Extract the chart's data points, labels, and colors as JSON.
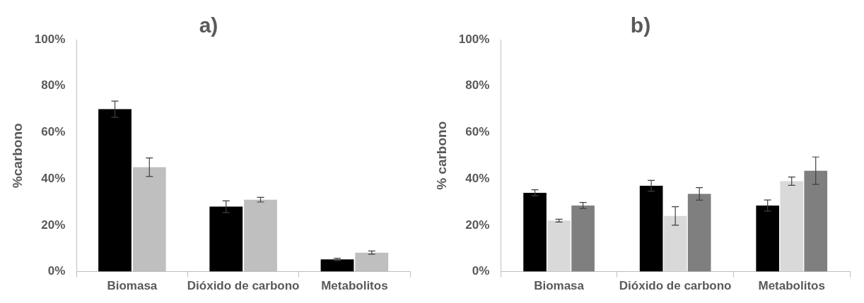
{
  "chart_data": [
    {
      "type": "bar",
      "title": "a)",
      "ylabel": "%carbono",
      "categories": [
        "Biomasa",
        "Dióxido de carbono",
        "Metabolitos"
      ],
      "series": [
        {
          "color": "#000000",
          "values": [
            70,
            28,
            5.3
          ],
          "errors": [
            3.5,
            2.5,
            0.5
          ]
        },
        {
          "color": "#bfbfbf",
          "values": [
            45,
            31,
            8.2
          ],
          "errors": [
            4,
            1,
            0.7
          ]
        }
      ],
      "ylim": [
        0,
        100
      ],
      "yticks": [
        {
          "value": 0,
          "label": "0%"
        },
        {
          "value": 20,
          "label": "20%"
        },
        {
          "value": 40,
          "label": "40%"
        },
        {
          "value": 60,
          "label": "60%"
        },
        {
          "value": 80,
          "label": "80%"
        },
        {
          "value": 100,
          "label": "100%"
        }
      ],
      "grid": false,
      "legend": false
    },
    {
      "type": "bar",
      "title": "b)",
      "ylabel": "% carbono",
      "categories": [
        "Biomasa",
        "Dióxido de carbono",
        "Metabolitos"
      ],
      "series": [
        {
          "color": "#000000",
          "values": [
            34,
            37,
            28.5
          ],
          "errors": [
            1.3,
            2.3,
            2.4
          ]
        },
        {
          "color": "#d9d9d9",
          "values": [
            22,
            24,
            39
          ],
          "errors": [
            0.6,
            4,
            1.8
          ]
        },
        {
          "color": "#7f7f7f",
          "values": [
            28.5,
            33.5,
            43.5
          ],
          "errors": [
            1.3,
            2.7,
            5.9
          ]
        }
      ],
      "ylim": [
        0,
        100
      ],
      "yticks": [
        {
          "value": 0,
          "label": "0%"
        },
        {
          "value": 20,
          "label": "20%"
        },
        {
          "value": 40,
          "label": "40%"
        },
        {
          "value": 60,
          "label": "60%"
        },
        {
          "value": 80,
          "label": "80%"
        },
        {
          "value": 100,
          "label": "100%"
        }
      ],
      "grid": false,
      "legend": false
    }
  ]
}
